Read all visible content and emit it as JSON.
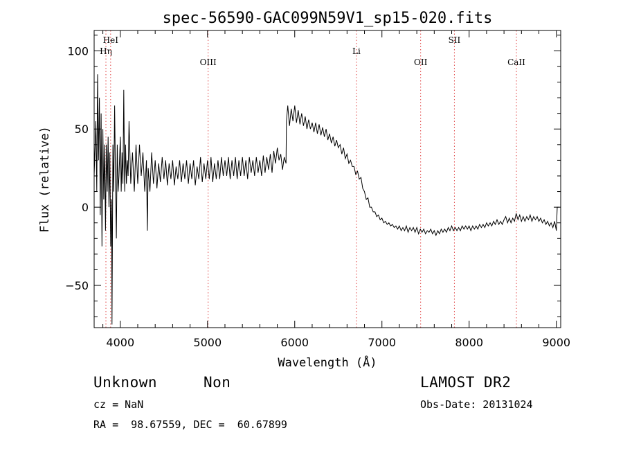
{
  "chart_data": {
    "type": "line",
    "title": "spec-56590-GAC099N59V1_sp15-020.fits",
    "xlabel": "Wavelength (Å)",
    "ylabel": "Flux (relative)",
    "xlim": [
      3700,
      9050
    ],
    "ylim": [
      -77,
      113
    ],
    "xticks": [
      4000,
      5000,
      6000,
      7000,
      8000,
      9000
    ],
    "yticks": [
      -50,
      0,
      50,
      100
    ],
    "grid": false,
    "lines": [
      {
        "label": "Hη",
        "wavelength": 3835,
        "label_row": 2
      },
      {
        "label": "HeI",
        "wavelength": 3889,
        "label_row": 1
      },
      {
        "label": "OIII",
        "wavelength": 5007,
        "label_row": 3
      },
      {
        "label": "Li",
        "wavelength": 6708,
        "label_row": 2
      },
      {
        "label": "OII",
        "wavelength": 7444,
        "label_row": 3
      },
      {
        "label": "SII",
        "wavelength": 7831,
        "label_row": 1
      },
      {
        "label": "CaII",
        "wavelength": 8542,
        "label_row": 3
      }
    ],
    "series": [
      {
        "points": [
          [
            3700,
            20
          ],
          [
            3720,
            55
          ],
          [
            3730,
            10
          ],
          [
            3740,
            85
          ],
          [
            3750,
            30
          ],
          [
            3760,
            70
          ],
          [
            3770,
            -5
          ],
          [
            3780,
            60
          ],
          [
            3790,
            -25
          ],
          [
            3800,
            50
          ],
          [
            3810,
            5
          ],
          [
            3820,
            40
          ],
          [
            3830,
            -15
          ],
          [
            3840,
            40
          ],
          [
            3850,
            10
          ],
          [
            3860,
            45
          ],
          [
            3870,
            0
          ],
          [
            3880,
            35
          ],
          [
            3890,
            -25
          ],
          [
            3900,
            5
          ],
          [
            3905,
            -75
          ],
          [
            3915,
            40
          ],
          [
            3925,
            10
          ],
          [
            3935,
            65
          ],
          [
            3945,
            15
          ],
          [
            3955,
            -20
          ],
          [
            3965,
            40
          ],
          [
            3975,
            10
          ],
          [
            3985,
            20
          ],
          [
            4000,
            45
          ],
          [
            4010,
            10
          ],
          [
            4020,
            35
          ],
          [
            4030,
            15
          ],
          [
            4040,
            75
          ],
          [
            4050,
            10
          ],
          [
            4060,
            40
          ],
          [
            4070,
            15
          ],
          [
            4080,
            30
          ],
          [
            4090,
            20
          ],
          [
            4100,
            55
          ],
          [
            4120,
            15
          ],
          [
            4140,
            35
          ],
          [
            4160,
            10
          ],
          [
            4180,
            40
          ],
          [
            4200,
            15
          ],
          [
            4220,
            40
          ],
          [
            4240,
            20
          ],
          [
            4260,
            35
          ],
          [
            4280,
            10
          ],
          [
            4300,
            30
          ],
          [
            4310,
            -15
          ],
          [
            4320,
            25
          ],
          [
            4340,
            10
          ],
          [
            4360,
            35
          ],
          [
            4380,
            15
          ],
          [
            4400,
            30
          ],
          [
            4420,
            12
          ],
          [
            4440,
            28
          ],
          [
            4460,
            16
          ],
          [
            4480,
            32
          ],
          [
            4500,
            18
          ],
          [
            4520,
            30
          ],
          [
            4540,
            14
          ],
          [
            4560,
            28
          ],
          [
            4580,
            18
          ],
          [
            4600,
            30
          ],
          [
            4620,
            14
          ],
          [
            4640,
            26
          ],
          [
            4660,
            18
          ],
          [
            4680,
            30
          ],
          [
            4700,
            16
          ],
          [
            4720,
            28
          ],
          [
            4740,
            18
          ],
          [
            4760,
            30
          ],
          [
            4780,
            15
          ],
          [
            4800,
            28
          ],
          [
            4820,
            18
          ],
          [
            4840,
            30
          ],
          [
            4860,
            14
          ],
          [
            4880,
            26
          ],
          [
            4900,
            18
          ],
          [
            4920,
            32
          ],
          [
            4940,
            16
          ],
          [
            4960,
            28
          ],
          [
            4980,
            18
          ],
          [
            5000,
            30
          ],
          [
            5020,
            18
          ],
          [
            5040,
            32
          ],
          [
            5060,
            16
          ],
          [
            5080,
            28
          ],
          [
            5100,
            18
          ],
          [
            5120,
            30
          ],
          [
            5140,
            18
          ],
          [
            5160,
            32
          ],
          [
            5180,
            20
          ],
          [
            5200,
            30
          ],
          [
            5220,
            20
          ],
          [
            5240,
            32
          ],
          [
            5260,
            18
          ],
          [
            5280,
            30
          ],
          [
            5300,
            20
          ],
          [
            5320,
            32
          ],
          [
            5340,
            18
          ],
          [
            5360,
            30
          ],
          [
            5380,
            20
          ],
          [
            5400,
            32
          ],
          [
            5420,
            20
          ],
          [
            5440,
            30
          ],
          [
            5460,
            18
          ],
          [
            5480,
            32
          ],
          [
            5500,
            22
          ],
          [
            5520,
            30
          ],
          [
            5540,
            20
          ],
          [
            5560,
            32
          ],
          [
            5580,
            22
          ],
          [
            5600,
            30
          ],
          [
            5620,
            20
          ],
          [
            5640,
            33
          ],
          [
            5660,
            22
          ],
          [
            5680,
            32
          ],
          [
            5700,
            24
          ],
          [
            5720,
            34
          ],
          [
            5740,
            22
          ],
          [
            5760,
            36
          ],
          [
            5780,
            28
          ],
          [
            5800,
            38
          ],
          [
            5820,
            30
          ],
          [
            5840,
            34
          ],
          [
            5860,
            24
          ],
          [
            5880,
            32
          ],
          [
            5900,
            28
          ],
          [
            5905,
            55
          ],
          [
            5920,
            65
          ],
          [
            5940,
            52
          ],
          [
            5960,
            63
          ],
          [
            5980,
            55
          ],
          [
            6000,
            65
          ],
          [
            6020,
            54
          ],
          [
            6040,
            62
          ],
          [
            6060,
            53
          ],
          [
            6080,
            60
          ],
          [
            6100,
            52
          ],
          [
            6120,
            58
          ],
          [
            6140,
            50
          ],
          [
            6160,
            56
          ],
          [
            6180,
            50
          ],
          [
            6200,
            54
          ],
          [
            6220,
            48
          ],
          [
            6240,
            54
          ],
          [
            6260,
            47
          ],
          [
            6280,
            53
          ],
          [
            6300,
            46
          ],
          [
            6320,
            51
          ],
          [
            6340,
            45
          ],
          [
            6360,
            50
          ],
          [
            6380,
            43
          ],
          [
            6400,
            47
          ],
          [
            6420,
            41
          ],
          [
            6440,
            45
          ],
          [
            6460,
            39
          ],
          [
            6480,
            43
          ],
          [
            6500,
            38
          ],
          [
            6520,
            40
          ],
          [
            6540,
            34
          ],
          [
            6560,
            38
          ],
          [
            6580,
            31
          ],
          [
            6600,
            34
          ],
          [
            6620,
            28
          ],
          [
            6640,
            30
          ],
          [
            6660,
            26
          ],
          [
            6680,
            26
          ],
          [
            6700,
            21
          ],
          [
            6720,
            23
          ],
          [
            6740,
            18
          ],
          [
            6760,
            19
          ],
          [
            6780,
            12
          ],
          [
            6800,
            10
          ],
          [
            6820,
            5
          ],
          [
            6840,
            6
          ],
          [
            6860,
            0
          ],
          [
            6880,
            0
          ],
          [
            6900,
            -3
          ],
          [
            6920,
            -3
          ],
          [
            6940,
            -6
          ],
          [
            6960,
            -5
          ],
          [
            6980,
            -8
          ],
          [
            7000,
            -7
          ],
          [
            7020,
            -10
          ],
          [
            7040,
            -9
          ],
          [
            7060,
            -11
          ],
          [
            7080,
            -10
          ],
          [
            7100,
            -12
          ],
          [
            7120,
            -11
          ],
          [
            7140,
            -13
          ],
          [
            7160,
            -12
          ],
          [
            7180,
            -14
          ],
          [
            7200,
            -12
          ],
          [
            7220,
            -15
          ],
          [
            7240,
            -13
          ],
          [
            7260,
            -15
          ],
          [
            7280,
            -12
          ],
          [
            7300,
            -16
          ],
          [
            7320,
            -13
          ],
          [
            7340,
            -15
          ],
          [
            7360,
            -13
          ],
          [
            7380,
            -16
          ],
          [
            7400,
            -13
          ],
          [
            7420,
            -17
          ],
          [
            7440,
            -14
          ],
          [
            7460,
            -16
          ],
          [
            7480,
            -14
          ],
          [
            7500,
            -17
          ],
          [
            7520,
            -15
          ],
          [
            7540,
            -16
          ],
          [
            7560,
            -14
          ],
          [
            7580,
            -17
          ],
          [
            7600,
            -15
          ],
          [
            7620,
            -18
          ],
          [
            7640,
            -15
          ],
          [
            7660,
            -17
          ],
          [
            7680,
            -14
          ],
          [
            7700,
            -16
          ],
          [
            7720,
            -14
          ],
          [
            7740,
            -16
          ],
          [
            7760,
            -13
          ],
          [
            7780,
            -15
          ],
          [
            7800,
            -12
          ],
          [
            7820,
            -15
          ],
          [
            7840,
            -13
          ],
          [
            7860,
            -15
          ],
          [
            7880,
            -13
          ],
          [
            7900,
            -15
          ],
          [
            7920,
            -12
          ],
          [
            7940,
            -14
          ],
          [
            7960,
            -12
          ],
          [
            7980,
            -14
          ],
          [
            8000,
            -12
          ],
          [
            8020,
            -15
          ],
          [
            8040,
            -12
          ],
          [
            8060,
            -14
          ],
          [
            8080,
            -12
          ],
          [
            8100,
            -14
          ],
          [
            8120,
            -11
          ],
          [
            8140,
            -13
          ],
          [
            8160,
            -11
          ],
          [
            8180,
            -13
          ],
          [
            8200,
            -10
          ],
          [
            8220,
            -12
          ],
          [
            8240,
            -10
          ],
          [
            8260,
            -12
          ],
          [
            8280,
            -9
          ],
          [
            8300,
            -11
          ],
          [
            8320,
            -8
          ],
          [
            8340,
            -11
          ],
          [
            8360,
            -9
          ],
          [
            8380,
            -11
          ],
          [
            8400,
            -8
          ],
          [
            8420,
            -6
          ],
          [
            8440,
            -10
          ],
          [
            8460,
            -7
          ],
          [
            8480,
            -10
          ],
          [
            8500,
            -7
          ],
          [
            8520,
            -9
          ],
          [
            8540,
            -4
          ],
          [
            8560,
            -8
          ],
          [
            8580,
            -5
          ],
          [
            8600,
            -9
          ],
          [
            8620,
            -6
          ],
          [
            8640,
            -9
          ],
          [
            8660,
            -6
          ],
          [
            8680,
            -8
          ],
          [
            8700,
            -5
          ],
          [
            8720,
            -9
          ],
          [
            8740,
            -6
          ],
          [
            8760,
            -8
          ],
          [
            8780,
            -6
          ],
          [
            8800,
            -9
          ],
          [
            8820,
            -7
          ],
          [
            8840,
            -10
          ],
          [
            8860,
            -8
          ],
          [
            8880,
            -11
          ],
          [
            8900,
            -9
          ],
          [
            8920,
            -12
          ],
          [
            8940,
            -10
          ],
          [
            8960,
            -13
          ],
          [
            8980,
            -9
          ],
          [
            9000,
            -15
          ],
          [
            9010,
            0
          ],
          [
            9030,
            0
          ]
        ]
      }
    ]
  },
  "info": {
    "class_label": "Unknown",
    "subclass_label": "Non",
    "survey": "LAMOST DR2",
    "cz": "cz = NaN",
    "obs_date": "Obs-Date: 20131024",
    "coords": "RA =  98.67559, DEC =  60.67899"
  },
  "colors": {
    "axis": "#000000",
    "spectrum": "#000000",
    "line_marker": "#e04040"
  }
}
